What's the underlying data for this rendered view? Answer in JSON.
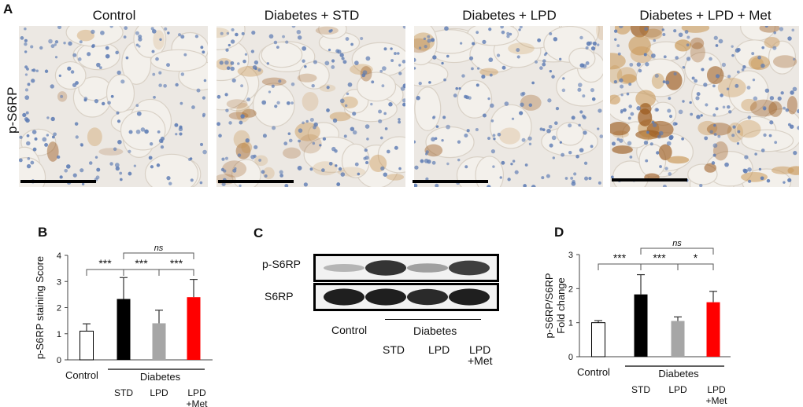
{
  "panel_a": {
    "letter": "A",
    "row_label": "p-S6RP",
    "columns": [
      {
        "title": "Control",
        "stain": 0.1
      },
      {
        "title": "Diabetes + STD",
        "stain": 0.55
      },
      {
        "title": "Diabetes + LPD",
        "stain": 0.15
      },
      {
        "title": "Diabetes + LPD + Met",
        "stain": 0.9
      }
    ]
  },
  "panel_c": {
    "letter": "C",
    "bands": [
      {
        "label": "p-S6RP",
        "intensity": [
          0.25,
          0.85,
          0.35,
          0.8
        ]
      },
      {
        "label": "S6RP",
        "intensity": [
          0.95,
          0.95,
          0.9,
          0.95
        ]
      }
    ],
    "lanes": {
      "control": "Control",
      "diabetes": "Diabetes",
      "std": "STD",
      "lpd": "LPD",
      "lpd_met_1": "LPD",
      "lpd_met_2": "+Met"
    }
  },
  "chart_data": [
    {
      "type": "bar",
      "panel": "B",
      "ylabel": "p-S6RP staining Score",
      "ylim": [
        0,
        4
      ],
      "yticks": [
        "0",
        "1",
        "2",
        "3",
        "4"
      ],
      "categories": [
        "Control",
        "STD",
        "LPD",
        "LPD +Met"
      ],
      "group_label": "Diabetes",
      "values": [
        1.1,
        2.33,
        1.4,
        2.4
      ],
      "errors": [
        0.28,
        0.82,
        0.5,
        0.68
      ],
      "colors": [
        "#ffffff",
        "#000000",
        "#a6a6a6",
        "#ff0000"
      ],
      "significance": [
        {
          "from": 0,
          "to": 1,
          "label": "***"
        },
        {
          "from": 1,
          "to": 2,
          "label": "***"
        },
        {
          "from": 2,
          "to": 3,
          "label": "***"
        },
        {
          "from": 1,
          "to": 3,
          "label": "ns"
        }
      ]
    },
    {
      "type": "bar",
      "panel": "D",
      "ylabel": "p-S6RP/S6RP Fold change",
      "ylim": [
        0,
        3
      ],
      "yticks": [
        "0",
        "1",
        "2",
        "3"
      ],
      "categories": [
        "Control",
        "STD",
        "LPD",
        "LPD +Met"
      ],
      "group_label": "Diabetes",
      "values": [
        1.0,
        1.83,
        1.05,
        1.6
      ],
      "errors": [
        0.06,
        0.58,
        0.12,
        0.32
      ],
      "colors": [
        "#ffffff",
        "#000000",
        "#a6a6a6",
        "#ff0000"
      ],
      "significance": [
        {
          "from": 0,
          "to": 1,
          "label": "***"
        },
        {
          "from": 1,
          "to": 2,
          "label": "***"
        },
        {
          "from": 2,
          "to": 3,
          "label": "*"
        },
        {
          "from": 1,
          "to": 3,
          "label": "ns"
        }
      ]
    }
  ]
}
